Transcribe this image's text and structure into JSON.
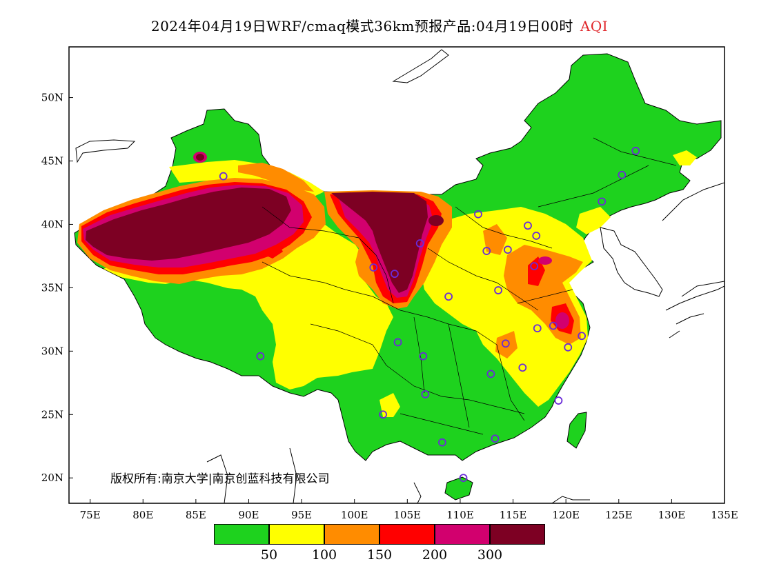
{
  "title": {
    "main": "2024年04月19日WRF/cmaq模式36km预报产品:04月19日00时",
    "product": "AQI"
  },
  "copyright": "版权所有:南京大学|南京创蓝科技有限公司",
  "axes": {
    "lon_ticks": [
      "75E",
      "80E",
      "85E",
      "90E",
      "95E",
      "100E",
      "105E",
      "110E",
      "115E",
      "120E",
      "125E",
      "130E",
      "135E"
    ],
    "lat_ticks": [
      "50N",
      "45N",
      "40N",
      "35N",
      "30N",
      "25N",
      "20N"
    ],
    "lon_values": [
      75,
      80,
      85,
      90,
      95,
      100,
      105,
      110,
      115,
      120,
      125,
      130,
      135
    ],
    "lat_values": [
      50,
      45,
      40,
      35,
      30,
      25,
      20
    ],
    "lon_range": [
      73,
      135
    ],
    "lat_range": [
      18,
      54
    ]
  },
  "legend": {
    "colors": [
      "#1ed21e",
      "#ffff00",
      "#ff8c00",
      "#ff0000",
      "#d2006e",
      "#7d0023"
    ],
    "labels": [
      "50",
      "100",
      "150",
      "200",
      "300"
    ]
  },
  "stations": [
    [
      87.6,
      43.8
    ],
    [
      91.1,
      29.6
    ],
    [
      101.8,
      36.6
    ],
    [
      103.8,
      36.1
    ],
    [
      106.2,
      38.5
    ],
    [
      106.5,
      29.6
    ],
    [
      104.1,
      30.7
    ],
    [
      106.7,
      26.6
    ],
    [
      102.7,
      25.0
    ],
    [
      108.3,
      22.8
    ],
    [
      110.3,
      20.0
    ],
    [
      113.3,
      23.1
    ],
    [
      112.9,
      28.2
    ],
    [
      114.3,
      30.6
    ],
    [
      115.9,
      28.7
    ],
    [
      119.3,
      26.1
    ],
    [
      120.2,
      30.3
    ],
    [
      121.5,
      31.2
    ],
    [
      118.8,
      32.0
    ],
    [
      117.3,
      31.8
    ],
    [
      113.6,
      34.8
    ],
    [
      112.5,
      37.9
    ],
    [
      114.5,
      38.0
    ],
    [
      116.4,
      39.9
    ],
    [
      117.2,
      39.1
    ],
    [
      117.0,
      36.7
    ],
    [
      111.7,
      40.8
    ],
    [
      108.9,
      34.3
    ],
    [
      123.4,
      41.8
    ],
    [
      125.3,
      43.9
    ],
    [
      126.6,
      45.8
    ]
  ]
}
